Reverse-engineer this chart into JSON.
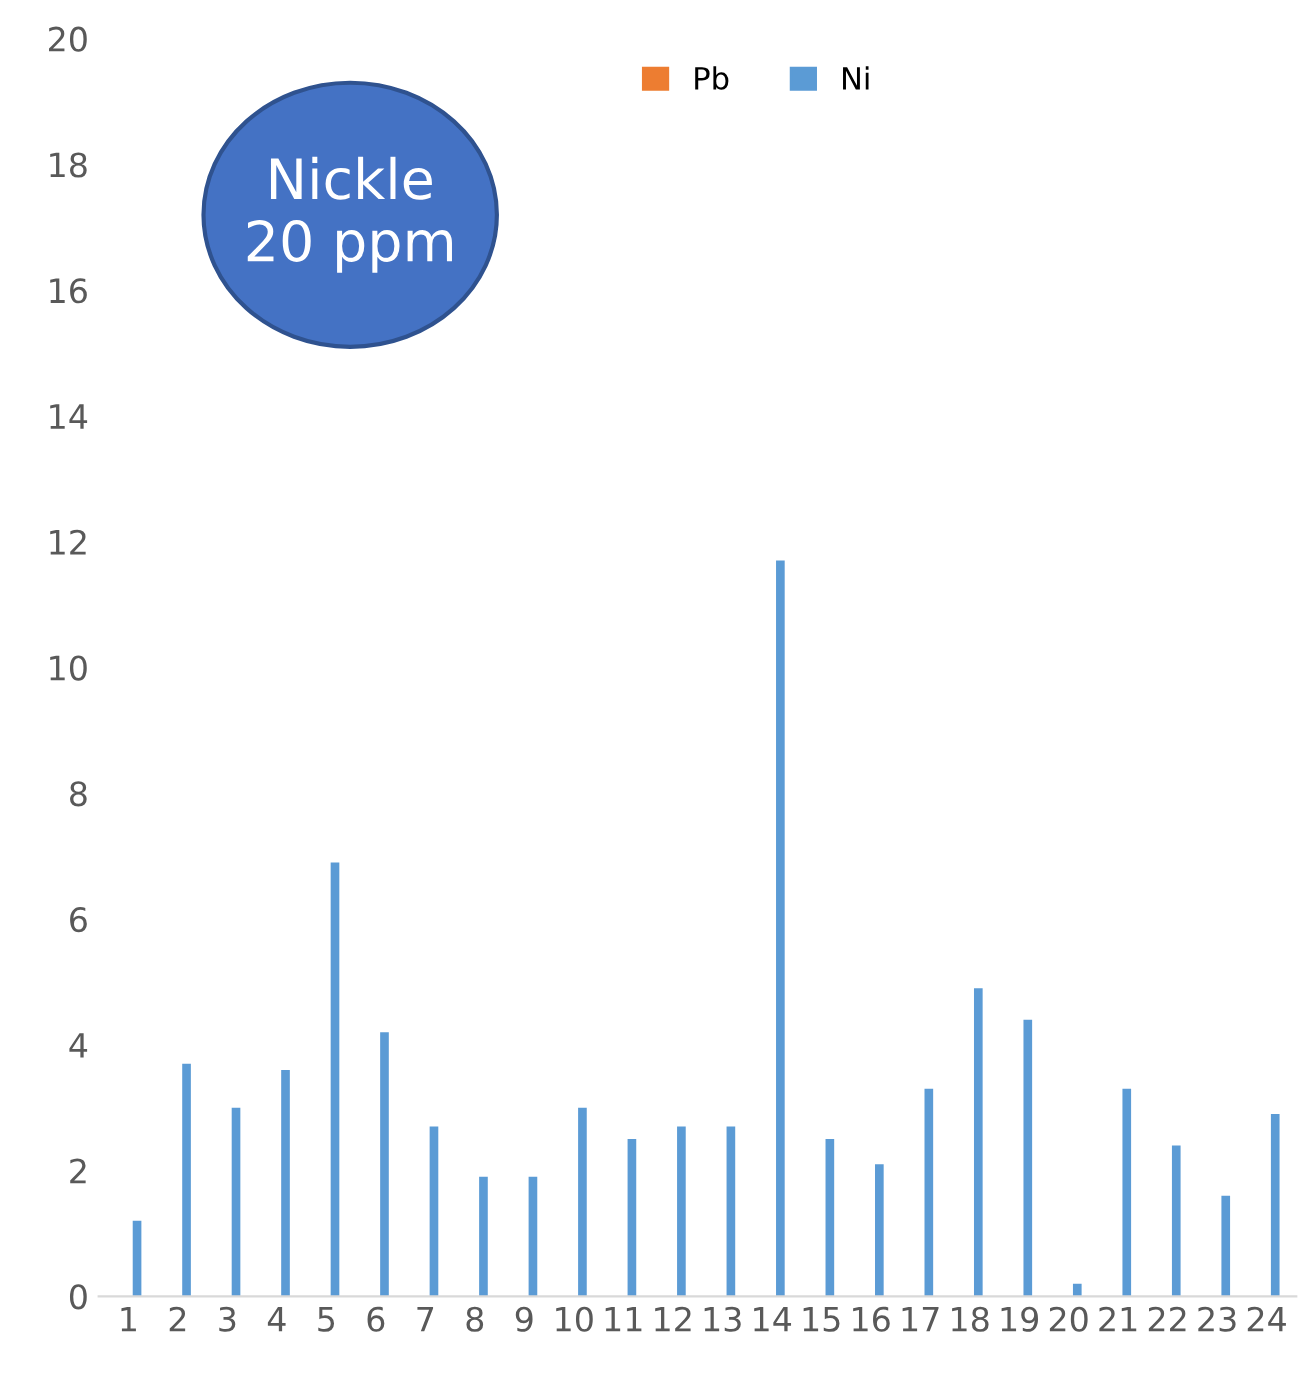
{
  "chart_data": {
    "type": "bar",
    "categories": [
      "1",
      "2",
      "3",
      "4",
      "5",
      "6",
      "7",
      "8",
      "9",
      "10",
      "11",
      "12",
      "13",
      "14",
      "15",
      "16",
      "17",
      "18",
      "19",
      "20",
      "21",
      "22",
      "23",
      "24"
    ],
    "series": [
      {
        "name": "Pb",
        "color": "#ed7d31",
        "values": [
          null,
          null,
          null,
          null,
          null,
          null,
          null,
          null,
          null,
          null,
          null,
          null,
          null,
          null,
          null,
          null,
          null,
          null,
          null,
          null,
          null,
          null,
          null,
          null
        ]
      },
      {
        "name": "Ni",
        "color": "#5b9bd5",
        "values": [
          1.2,
          3.7,
          3.0,
          3.6,
          6.9,
          4.2,
          2.7,
          1.9,
          1.9,
          3.0,
          2.5,
          2.7,
          2.7,
          11.7,
          2.5,
          2.1,
          3.3,
          4.9,
          4.4,
          0.2,
          3.3,
          2.4,
          1.6,
          2.9
        ]
      }
    ],
    "ylim": [
      0,
      20
    ],
    "yticks": [
      0,
      2,
      4,
      6,
      8,
      10,
      12,
      14,
      16,
      18,
      20
    ],
    "grid": false,
    "legend": "top",
    "annotations": [
      "Nickle\n20 ppm"
    ]
  }
}
